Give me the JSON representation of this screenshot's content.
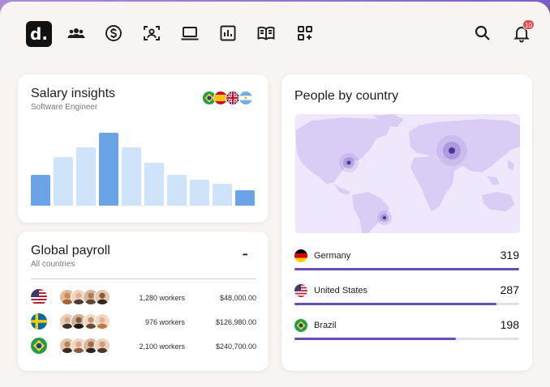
{
  "header": {
    "logo_text": "d.",
    "icons": [
      "people-icon",
      "dollar-icon",
      "user-badge-icon",
      "laptop-icon",
      "bar-chart-icon",
      "book-icon",
      "apps-icon"
    ],
    "notification_count": "10"
  },
  "salary": {
    "title": "Salary insights",
    "subtitle": "Software Engineer",
    "flags": [
      "brazil",
      "spain",
      "united-kingdom",
      "argentina"
    ],
    "colors": {
      "highlight": "#6aa4e6",
      "normal": "#cfe3fb"
    }
  },
  "chart_data": {
    "type": "bar",
    "categories": [
      "",
      "",
      "",
      "",
      "",
      "",
      "",
      "",
      "",
      ""
    ],
    "values": [
      38,
      60,
      72,
      90,
      72,
      53,
      38,
      32,
      27,
      19
    ],
    "highlighted": [
      0,
      3,
      9
    ],
    "title": "Salary insights",
    "xlabel": "",
    "ylabel": "",
    "ylim": [
      0,
      100
    ],
    "grid": false
  },
  "payroll": {
    "title": "Global payroll",
    "subtitle": "All countries",
    "more": "•••",
    "rows": [
      {
        "flag": "united-states",
        "workers": "1,280 workers",
        "amount": "$48,000.00"
      },
      {
        "flag": "sweden",
        "workers": "976 workers",
        "amount": "$126,980.00"
      },
      {
        "flag": "brazil",
        "workers": "2,100 workers",
        "amount": "$240,700.00"
      }
    ]
  },
  "people": {
    "title": "People by country",
    "countries": [
      {
        "name": "Germany",
        "value": "319",
        "flag": "germany",
        "fill": 1.0
      },
      {
        "name": "United States",
        "value": "287",
        "flag": "united-states",
        "fill": 0.9
      },
      {
        "name": "Brazil",
        "value": "198",
        "flag": "brazil",
        "fill": 0.72
      }
    ],
    "colors": {
      "bar": "#6a4cb8",
      "map_land": "#d9cdf5",
      "map_sea": "#efe7fb",
      "hotspot": "#7b5cc4"
    }
  }
}
